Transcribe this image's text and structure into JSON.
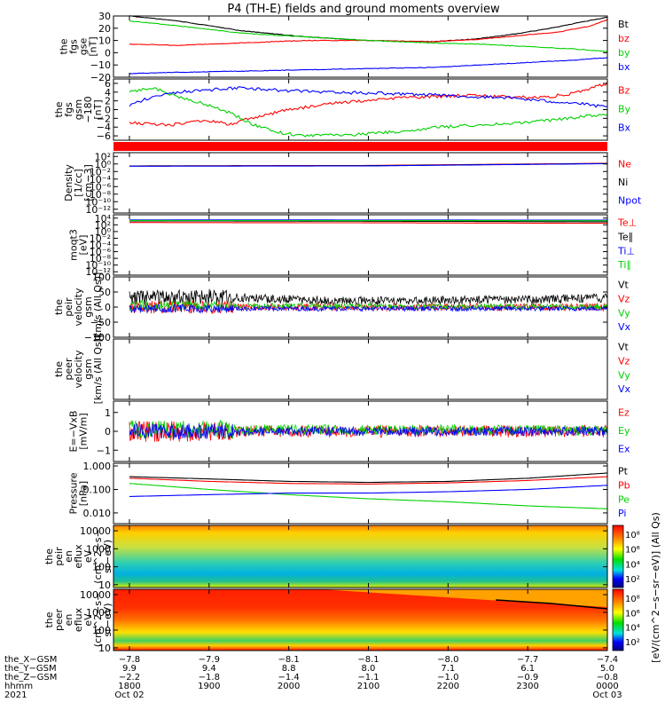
{
  "title": "P4 (TH-E) fields and ground moments overview",
  "colors": {
    "black": "#000000",
    "red": "#ff0000",
    "green": "#00d000",
    "blue": "#0000ff"
  },
  "chart_data": [
    {
      "type": "line",
      "id": "fgs_gse",
      "ylabel": [
        "the",
        "fgs",
        "gse",
        "[nT]"
      ],
      "ylim": [
        -20,
        30
      ],
      "yticks": [
        "30",
        "20",
        "10",
        "0",
        "−10",
        "−20"
      ],
      "ytick_values": [
        30,
        20,
        10,
        0,
        -10,
        -20
      ],
      "series": [
        {
          "name": "Bt",
          "color": "black",
          "points": [
            [
              18.0,
              30
            ],
            [
              18.6,
              26
            ],
            [
              19.4,
              18
            ],
            [
              20.2,
              13
            ],
            [
              21.0,
              10
            ],
            [
              21.8,
              9
            ],
            [
              22.3,
              11
            ],
            [
              22.7,
              14
            ],
            [
              23.2,
              19
            ],
            [
              23.6,
              24
            ],
            [
              24.0,
              29
            ]
          ]
        },
        {
          "name": "bz",
          "color": "red",
          "points": [
            [
              18.0,
              7
            ],
            [
              18.6,
              6
            ],
            [
              19.4,
              8
            ],
            [
              20.2,
              10
            ],
            [
              21.0,
              10
            ],
            [
              21.8,
              9
            ],
            [
              22.4,
              11
            ],
            [
              22.9,
              14
            ],
            [
              23.4,
              17
            ],
            [
              23.8,
              22
            ],
            [
              24.0,
              27
            ]
          ]
        },
        {
          "name": "by",
          "color": "green",
          "points": [
            [
              18.0,
              26
            ],
            [
              18.6,
              22
            ],
            [
              19.4,
              16
            ],
            [
              20.2,
              13
            ],
            [
              21.0,
              10
            ],
            [
              21.8,
              8
            ],
            [
              22.4,
              7
            ],
            [
              23.0,
              5
            ],
            [
              23.6,
              3
            ],
            [
              24.0,
              1
            ]
          ]
        },
        {
          "name": "bx",
          "color": "blue",
          "points": [
            [
              18.0,
              -17
            ],
            [
              18.6,
              -16
            ],
            [
              19.4,
              -15
            ],
            [
              20.2,
              -14
            ],
            [
              21.0,
              -13
            ],
            [
              21.8,
              -12
            ],
            [
              22.4,
              -10
            ],
            [
              23.0,
              -8
            ],
            [
              23.6,
              -6
            ],
            [
              24.0,
              -4
            ]
          ]
        }
      ]
    },
    {
      "type": "line",
      "id": "fgs_gsm",
      "ylabel": [
        "the",
        "fgs",
        "gsm",
        "−180",
        "[nT]"
      ],
      "ylim": [
        -7,
        7
      ],
      "yticks": [
        "6",
        "4",
        "2",
        "0",
        "−2",
        "−4",
        "−6"
      ],
      "ytick_values": [
        6,
        4,
        2,
        0,
        -2,
        -4,
        -6
      ],
      "series": [
        {
          "name": "Bz",
          "color": "red",
          "points": [
            [
              18.0,
              -3
            ],
            [
              18.5,
              -3.5
            ],
            [
              19.0,
              -2.5
            ],
            [
              19.3,
              -3.5
            ],
            [
              19.5,
              -2
            ],
            [
              20.0,
              0
            ],
            [
              20.6,
              1.5
            ],
            [
              21.2,
              2.5
            ],
            [
              21.8,
              3
            ],
            [
              22.3,
              3.2
            ],
            [
              22.7,
              3
            ],
            [
              23.0,
              2.8
            ],
            [
              23.3,
              3
            ],
            [
              23.6,
              3.8
            ],
            [
              23.8,
              5
            ],
            [
              24.0,
              6
            ]
          ]
        },
        {
          "name": "By",
          "color": "green",
          "points": [
            [
              18.0,
              4
            ],
            [
              18.3,
              5
            ],
            [
              18.6,
              3
            ],
            [
              19.0,
              1
            ],
            [
              19.3,
              -1
            ],
            [
              19.5,
              -3
            ],
            [
              19.8,
              -5
            ],
            [
              20.2,
              -6
            ],
            [
              20.8,
              -5.8
            ],
            [
              21.4,
              -5
            ],
            [
              21.9,
              -4
            ],
            [
              22.4,
              -3.5
            ],
            [
              23.0,
              -3
            ],
            [
              23.5,
              -2
            ],
            [
              24.0,
              -1
            ]
          ]
        },
        {
          "name": "Bx",
          "color": "blue",
          "points": [
            [
              18.0,
              1
            ],
            [
              18.3,
              3
            ],
            [
              18.6,
              4
            ],
            [
              19.0,
              4.5
            ],
            [
              19.4,
              5
            ],
            [
              19.8,
              4.5
            ],
            [
              20.4,
              4
            ],
            [
              21.0,
              3.8
            ],
            [
              21.6,
              3.5
            ],
            [
              22.2,
              3
            ],
            [
              22.7,
              2.8
            ],
            [
              23.2,
              2
            ],
            [
              23.6,
              1.5
            ],
            [
              24.0,
              0.5
            ]
          ]
        }
      ]
    },
    {
      "type": "band",
      "id": "state_bar",
      "color": "red"
    },
    {
      "type": "line",
      "id": "density",
      "scale": "log",
      "ylabel": [
        "Density",
        "[1/cc]",
        "[cm−3]"
      ],
      "ylim": [
        1e-13,
        1000.0
      ],
      "yticks": [
        "10²",
        "10⁰",
        "10⁻²",
        "10⁻⁴",
        "10⁻⁶",
        "10⁻⁸",
        "10⁻¹⁰",
        "10⁻¹²"
      ],
      "ytick_values": [
        100,
        1,
        0.01,
        0.0001,
        1e-06,
        1e-08,
        1e-10,
        1e-12
      ],
      "series": [
        {
          "name": "Ne",
          "color": "red",
          "points": [
            [
              18.0,
              0.3
            ],
            [
              21.0,
              0.4
            ],
            [
              24.0,
              1.5
            ]
          ]
        },
        {
          "name": "Ni",
          "color": "black",
          "points": [
            [
              18.0,
              0.3
            ],
            [
              21.0,
              0.35
            ],
            [
              24.0,
              1.3
            ]
          ]
        },
        {
          "name": "Npot",
          "color": "blue",
          "points": [
            [
              18.0,
              0.25
            ],
            [
              21.0,
              0.3
            ],
            [
              24.0,
              1.2
            ]
          ]
        }
      ]
    },
    {
      "type": "line",
      "id": "temperature",
      "scale": "log",
      "ylabel": [
        "moqt3",
        "[eV]"
      ],
      "ylim": [
        1e-13,
        100000.0
      ],
      "yticks": [
        "10⁴",
        "10²",
        "10⁰",
        "10⁻²",
        "10⁻⁴",
        "10⁻⁶",
        "10⁻⁸",
        "10⁻¹⁰",
        "10⁻¹²"
      ],
      "ytick_values": [
        10000,
        100,
        1,
        0.01,
        0.0001,
        1e-06,
        1e-08,
        1e-10,
        1e-12
      ],
      "series": [
        {
          "name": "Te⊥",
          "color": "red",
          "points": [
            [
              18.0,
              500
            ],
            [
              21.0,
              400
            ],
            [
              24.0,
              300
            ]
          ]
        },
        {
          "name": "Te∥",
          "color": "black",
          "points": [
            [
              18.0,
              1500
            ],
            [
              21.0,
              1200
            ],
            [
              24.0,
              800
            ]
          ]
        },
        {
          "name": "Ti⊥",
          "color": "blue",
          "points": [
            [
              18.0,
              3000
            ],
            [
              21.0,
              2800
            ],
            [
              24.0,
              2500
            ]
          ]
        },
        {
          "name": "Ti∥",
          "color": "green",
          "points": [
            [
              18.0,
              2000
            ],
            [
              21.0,
              1800
            ],
            [
              24.0,
              1700
            ]
          ]
        }
      ]
    },
    {
      "type": "line",
      "id": "peir_velocity",
      "noisy": true,
      "ylabel": [
        "the",
        "peir",
        "velocity",
        "gsm",
        "[km/s (All Qs)]"
      ],
      "ylim": [
        -100,
        100
      ],
      "yticks": [
        "100",
        "50",
        "0",
        "−50",
        "−100"
      ],
      "ytick_values": [
        100,
        50,
        0,
        -50,
        -100
      ],
      "series": [
        {
          "name": "Vt",
          "color": "black",
          "points": [
            [
              18.0,
              30
            ],
            [
              19.0,
              35
            ],
            [
              20.0,
              25
            ],
            [
              21.0,
              20
            ],
            [
              22.0,
              22
            ],
            [
              23.0,
              25
            ],
            [
              24.0,
              30
            ]
          ],
          "noise": 18
        },
        {
          "name": "Vz",
          "color": "red",
          "points": [
            [
              18.0,
              0
            ],
            [
              24.0,
              0
            ]
          ],
          "noise": 15
        },
        {
          "name": "Vy",
          "color": "green",
          "points": [
            [
              18.0,
              5
            ],
            [
              24.0,
              0
            ]
          ],
          "noise": 12
        },
        {
          "name": "Vx",
          "color": "blue",
          "points": [
            [
              18.0,
              -5
            ],
            [
              24.0,
              -5
            ]
          ],
          "noise": 10
        }
      ]
    },
    {
      "type": "line",
      "id": "peer_velocity",
      "ylabel": [
        "the",
        "peer",
        "velocity",
        "gsm",
        "[km/s (All Qs)]"
      ],
      "ylim": [
        -100,
        100
      ],
      "yticks": [],
      "ytick_values": [],
      "series": [
        {
          "name": "Vt",
          "color": "black",
          "points": []
        },
        {
          "name": "Vz",
          "color": "red",
          "points": []
        },
        {
          "name": "Vy",
          "color": "green",
          "points": []
        },
        {
          "name": "Vx",
          "color": "blue",
          "points": []
        }
      ]
    },
    {
      "type": "line",
      "id": "efield",
      "noisy": true,
      "ylabel": [
        "E=−VxB",
        "[mV/m]"
      ],
      "ylim": [
        -1.6,
        1.6
      ],
      "yticks": [
        "1",
        "0",
        "−1"
      ],
      "ytick_values": [
        1,
        0,
        -1
      ],
      "series": [
        {
          "name": "Ez",
          "color": "red",
          "points": [
            [
              18.0,
              0
            ],
            [
              24.0,
              0
            ]
          ],
          "noise": 0.4
        },
        {
          "name": "Ey",
          "color": "green",
          "points": [
            [
              18.0,
              0.1
            ],
            [
              24.0,
              0.05
            ]
          ],
          "noise": 0.35
        },
        {
          "name": "Ex",
          "color": "blue",
          "points": [
            [
              18.0,
              0
            ],
            [
              24.0,
              0
            ]
          ],
          "noise": 0.3
        }
      ]
    },
    {
      "type": "line",
      "id": "pressure",
      "scale": "log",
      "ylabel": [
        "Pressure",
        "[nPa]"
      ],
      "ylim": [
        0.0035,
        1.3
      ],
      "yticks": [
        "1.000",
        "0.100",
        "0.010",
        "0.001"
      ],
      "ytick_values": [
        1,
        0.1,
        0.01,
        0.001
      ],
      "series": [
        {
          "name": "Pt",
          "color": "black",
          "points": [
            [
              18.0,
              0.35
            ],
            [
              19.0,
              0.28
            ],
            [
              20.0,
              0.22
            ],
            [
              21.0,
              0.2
            ],
            [
              22.0,
              0.22
            ],
            [
              23.0,
              0.3
            ],
            [
              24.0,
              0.5
            ]
          ]
        },
        {
          "name": "Pb",
          "color": "red",
          "points": [
            [
              18.0,
              0.3
            ],
            [
              19.0,
              0.22
            ],
            [
              20.0,
              0.18
            ],
            [
              21.0,
              0.17
            ],
            [
              22.0,
              0.19
            ],
            [
              23.0,
              0.24
            ],
            [
              24.0,
              0.35
            ]
          ]
        },
        {
          "name": "Pe",
          "color": "green",
          "points": [
            [
              18.0,
              0.18
            ],
            [
              19.0,
              0.1
            ],
            [
              20.0,
              0.06
            ],
            [
              21.0,
              0.04
            ],
            [
              22.0,
              0.03
            ],
            [
              23.0,
              0.02
            ],
            [
              24.0,
              0.015
            ]
          ]
        },
        {
          "name": "Pi",
          "color": "blue",
          "points": [
            [
              18.0,
              0.05
            ],
            [
              19.0,
              0.06
            ],
            [
              20.0,
              0.07
            ],
            [
              21.0,
              0.07
            ],
            [
              22.0,
              0.08
            ],
            [
              23.0,
              0.1
            ],
            [
              24.0,
              0.15
            ]
          ]
        }
      ]
    },
    {
      "type": "heatmap",
      "id": "peir_en_eflux",
      "scale": "log",
      "ylabel": [
        "the",
        "peir",
        "en",
        "eflux",
        "eV",
        "(cm^2−s−",
        "sr−eV)"
      ],
      "ylim": [
        7,
        20000
      ],
      "yticks": [
        "10000",
        "1000",
        "100",
        "10"
      ],
      "ytick_values": [
        10000,
        1000,
        100,
        10
      ]
    },
    {
      "type": "heatmap",
      "id": "peer_en_eflux",
      "scale": "log",
      "ylabel": [
        "the",
        "peer",
        "en",
        "eflux",
        "eV",
        "(cm^2−s−",
        "sr−eV)"
      ],
      "ylim": [
        7,
        20000
      ],
      "yticks": [
        "10000",
        "1000",
        "100",
        "10"
      ],
      "ytick_values": [
        10000,
        1000,
        100,
        10
      ]
    }
  ],
  "colorbar": {
    "label": "[eV/(cm^2−s−sr−eV)] (All Qs)",
    "ticks_top": [
      "10⁸",
      "10⁶",
      "10⁴",
      "10²"
    ],
    "ticks_bottom": [
      "10⁸",
      "10⁶",
      "10⁴",
      "10²"
    ]
  },
  "x_axis": {
    "time_range_hours": [
      17.8,
      24.0
    ],
    "ticks_hours": [
      18,
      19,
      20,
      21,
      22,
      23,
      24
    ],
    "row_labels": [
      "the_X−GSM",
      "the_Y−GSM",
      "the_Z−GSM",
      "hhmm",
      "2021"
    ],
    "columns": [
      {
        "x": "−7.8",
        "y": "9.9",
        "z": "−2.2",
        "hhmm": "1800",
        "date": "Oct 02"
      },
      {
        "x": "−7.9",
        "y": "9.4",
        "z": "−1.8",
        "hhmm": "1900",
        "date": ""
      },
      {
        "x": "−8.1",
        "y": "8.8",
        "z": "−1.4",
        "hhmm": "2000",
        "date": ""
      },
      {
        "x": "−8.1",
        "y": "8.0",
        "z": "−1.1",
        "hhmm": "2100",
        "date": ""
      },
      {
        "x": "−8.0",
        "y": "7.1",
        "z": "−1.0",
        "hhmm": "2200",
        "date": ""
      },
      {
        "x": "−7.7",
        "y": "6.1",
        "z": "−0.9",
        "hhmm": "2300",
        "date": ""
      },
      {
        "x": "−7.4",
        "y": "5.0",
        "z": "−0.8",
        "hhmm": "0000",
        "date": "Oct 03"
      }
    ]
  }
}
